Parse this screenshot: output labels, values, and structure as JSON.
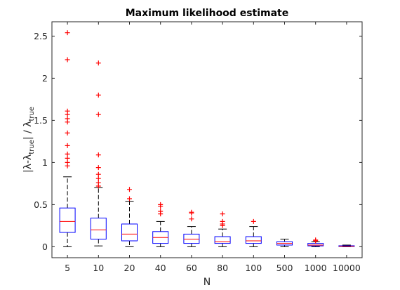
{
  "chart_data": {
    "type": "box",
    "title": "Maximum likelihood estimate",
    "xlabel": "N",
    "ylabel": {
      "pre": "|λ-λ",
      "sub1": "true",
      "mid": "| / λ",
      "sub2": "true"
    },
    "ylim": [
      -0.13,
      2.67
    ],
    "yticks": [
      0,
      0.5,
      1,
      1.5,
      2,
      2.5
    ],
    "ytick_labels": [
      "0",
      "0.5",
      "1",
      "1.5",
      "2",
      "2.5"
    ],
    "grid": false,
    "categories": [
      "5",
      "10",
      "20",
      "40",
      "60",
      "80",
      "100",
      "500",
      "1000",
      "10000"
    ],
    "boxes": [
      {
        "q1": 0.17,
        "median": 0.3,
        "q3": 0.46,
        "whisker_low": 0.0,
        "whisker_high": 0.83,
        "outliers": [
          0.96,
          1.0,
          1.05,
          1.1,
          1.2,
          1.35,
          1.48,
          1.52,
          1.57,
          1.61,
          2.22,
          2.54
        ]
      },
      {
        "q1": 0.09,
        "median": 0.2,
        "q3": 0.34,
        "whisker_low": 0.01,
        "whisker_high": 0.7,
        "outliers": [
          0.72,
          0.76,
          0.81,
          0.86,
          0.94,
          1.09,
          1.57,
          1.8,
          2.18
        ]
      },
      {
        "q1": 0.07,
        "median": 0.15,
        "q3": 0.27,
        "whisker_low": 0.0,
        "whisker_high": 0.54,
        "outliers": [
          0.57,
          0.68
        ]
      },
      {
        "q1": 0.04,
        "median": 0.11,
        "q3": 0.18,
        "whisker_low": 0.0,
        "whisker_high": 0.3,
        "outliers": [
          0.39,
          0.42,
          0.48,
          0.5
        ]
      },
      {
        "q1": 0.04,
        "median": 0.09,
        "q3": 0.15,
        "whisker_low": 0.0,
        "whisker_high": 0.24,
        "outliers": [
          0.33,
          0.4,
          0.41
        ]
      },
      {
        "q1": 0.04,
        "median": 0.06,
        "q3": 0.12,
        "whisker_low": 0.0,
        "whisker_high": 0.21,
        "outliers": [
          0.25,
          0.27,
          0.3,
          0.39
        ]
      },
      {
        "q1": 0.04,
        "median": 0.07,
        "q3": 0.12,
        "whisker_low": 0.0,
        "whisker_high": 0.24,
        "outliers": [
          0.3
        ]
      },
      {
        "q1": 0.02,
        "median": 0.04,
        "q3": 0.06,
        "whisker_low": 0.0,
        "whisker_high": 0.09,
        "outliers": []
      },
      {
        "q1": 0.01,
        "median": 0.02,
        "q3": 0.04,
        "whisker_low": 0.0,
        "whisker_high": 0.06,
        "outliers": [
          0.07,
          0.08
        ]
      },
      {
        "q1": 0.003,
        "median": 0.007,
        "q3": 0.012,
        "whisker_low": 0.0,
        "whisker_high": 0.02,
        "outliers": []
      }
    ],
    "colors": {
      "box": "#0000ff",
      "median": "#ff0000",
      "whisker": "#000000",
      "outlier": "#ff0000",
      "axis": "#262626"
    }
  }
}
